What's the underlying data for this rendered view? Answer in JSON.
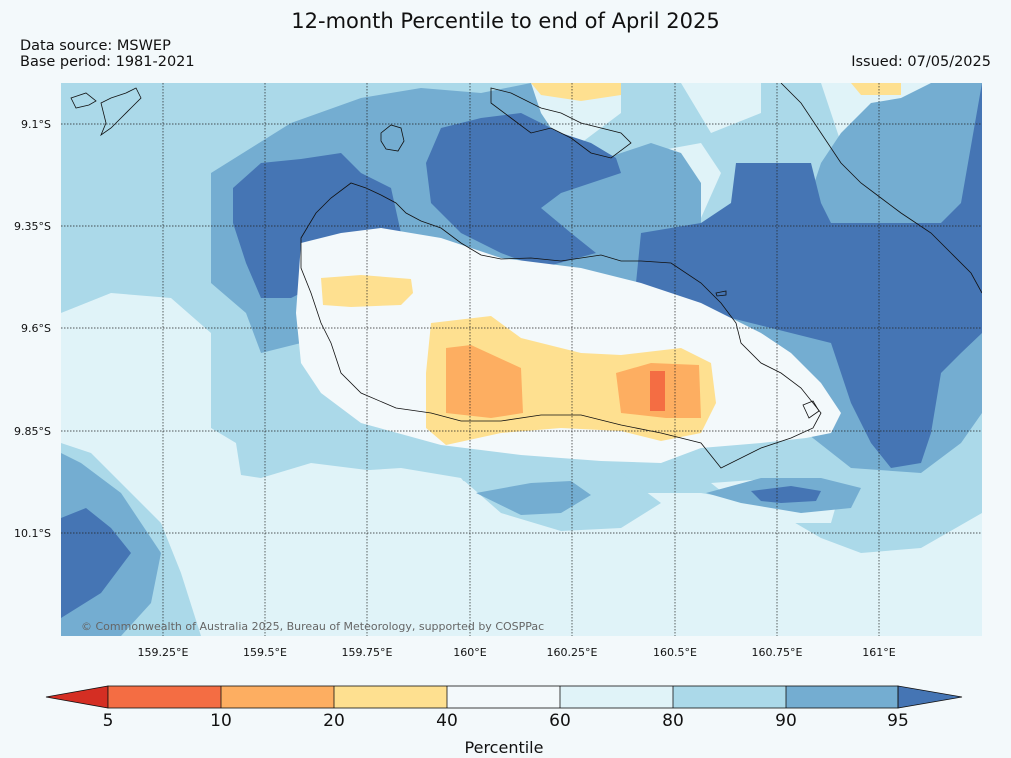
{
  "header": {
    "title": "12-month Percentile to end of April 2025",
    "data_source": "Data source: MSWEP",
    "base_period": "Base period: 1981-2021",
    "issued": "Issued: 07/05/2025"
  },
  "map": {
    "credit": "© Commonwealth of Australia 2025, Bureau of Meteorology, supported by COSPPac",
    "lat_labels": [
      "9.1°S",
      "9.35°S",
      "9.6°S",
      "9.85°S",
      "10.1°S"
    ],
    "lon_labels": [
      "159.25°E",
      "159.5°E",
      "159.75°E",
      "160°E",
      "160.25°E",
      "160.5°E",
      "160.75°E",
      "161°E"
    ],
    "colors": {
      "below5": "#d42e23",
      "p5_10": "#f46d43",
      "p10_20": "#fdae61",
      "p20_40": "#fee090",
      "p40_60": "#f3f9fb",
      "p60_80": "#e0f3f8",
      "p80_90": "#abd9e9",
      "p90_95": "#74add1",
      "above95": "#4575b4"
    }
  },
  "colorbar": {
    "ticks": [
      "5",
      "10",
      "20",
      "40",
      "60",
      "80",
      "90",
      "95"
    ],
    "label": "Percentile"
  }
}
